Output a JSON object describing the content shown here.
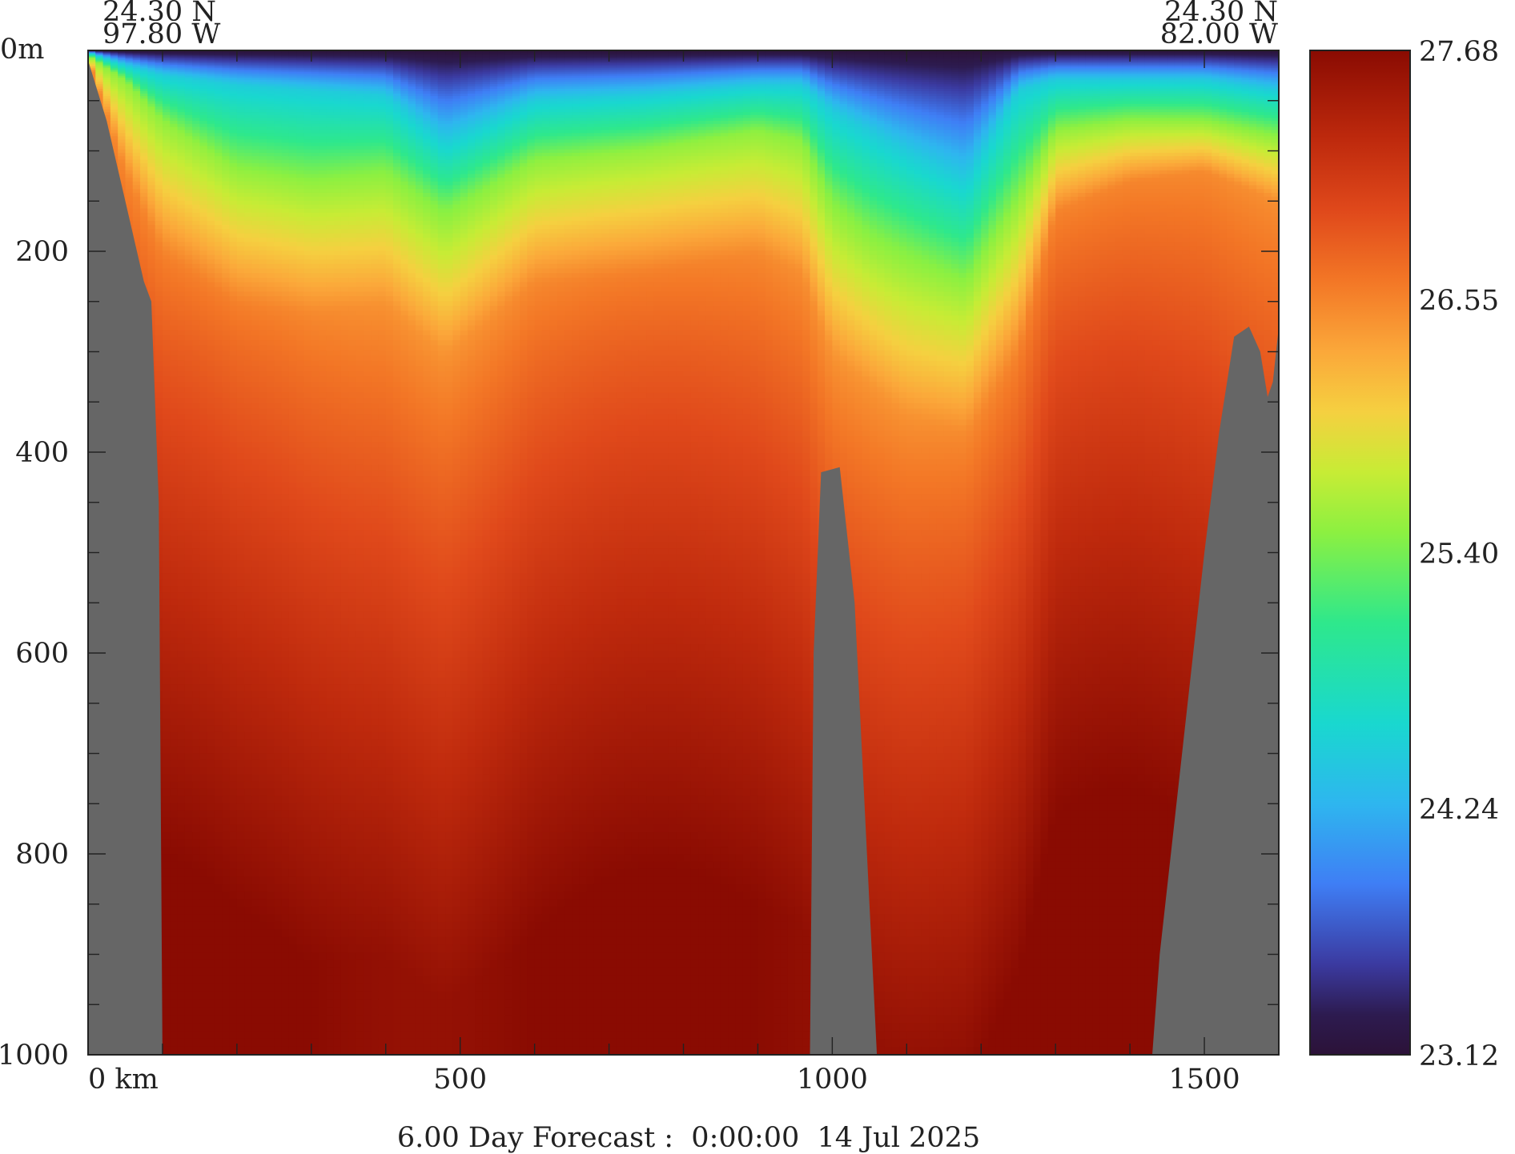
{
  "chart_data": {
    "type": "heatmap",
    "title": "",
    "caption": "6.00 Day Forecast :  0:00:00  14 Jul 2025",
    "corner_labels": {
      "left_lat": "24.30 N",
      "left_lon": "97.80 W",
      "right_lat": "24.30 N",
      "right_lon": "82.00 W"
    },
    "x_axis": {
      "range": [
        0,
        1600
      ],
      "ticks": [
        0,
        500,
        1000,
        1500
      ],
      "tick_labels": [
        "0 km",
        "500",
        "1000",
        "1500"
      ],
      "minor_step": 100
    },
    "y_axis": {
      "range": [
        0,
        1000
      ],
      "inverted": true,
      "ticks": [
        0,
        200,
        400,
        600,
        800,
        1000
      ],
      "tick_labels": [
        "0m",
        "200",
        "400",
        "600",
        "800",
        "1000"
      ],
      "minor_step": 50
    },
    "colorbar": {
      "min": 23.12,
      "max": 27.68,
      "tick_values": [
        27.68,
        26.55,
        25.4,
        24.24,
        23.12
      ],
      "tick_labels": [
        "27.68",
        "26.55",
        "25.40",
        "24.24",
        "23.12"
      ]
    },
    "field": {
      "distance_km": [
        0,
        50,
        100,
        200,
        300,
        400,
        480,
        600,
        750,
        900,
        960,
        1000,
        1050,
        1100,
        1180,
        1250,
        1300,
        1400,
        1500,
        1600
      ],
      "iso_24_5_depth_m": [
        2,
        15,
        25,
        35,
        40,
        45,
        90,
        50,
        45,
        35,
        35,
        60,
        80,
        100,
        130,
        40,
        30,
        30,
        30,
        40
      ],
      "iso_25_5_depth_m": [
        5,
        30,
        70,
        120,
        130,
        120,
        160,
        110,
        100,
        80,
        90,
        150,
        180,
        200,
        230,
        150,
        80,
        70,
        70,
        85
      ],
      "iso_26_5_depth_m": [
        10,
        120,
        200,
        250,
        260,
        250,
        300,
        230,
        220,
        200,
        220,
        300,
        330,
        360,
        380,
        300,
        160,
        130,
        120,
        150
      ],
      "deep_peak_temp_c": 27.68
    },
    "bathymetry_depth_m": {
      "distance_km": [
        0,
        25,
        50,
        75,
        85,
        95,
        100,
        108,
        970,
        975,
        985,
        1010,
        1030,
        1050,
        1060,
        1430,
        1440,
        1470,
        1500,
        1520,
        1540,
        1560,
        1575,
        1585,
        1592,
        1600
      ],
      "depth_m": [
        10,
        70,
        150,
        230,
        250,
        450,
        1000,
        1000,
        1000,
        600,
        420,
        415,
        550,
        850,
        1000,
        1000,
        900,
        700,
        500,
        380,
        285,
        275,
        300,
        345,
        330,
        275
      ]
    }
  }
}
